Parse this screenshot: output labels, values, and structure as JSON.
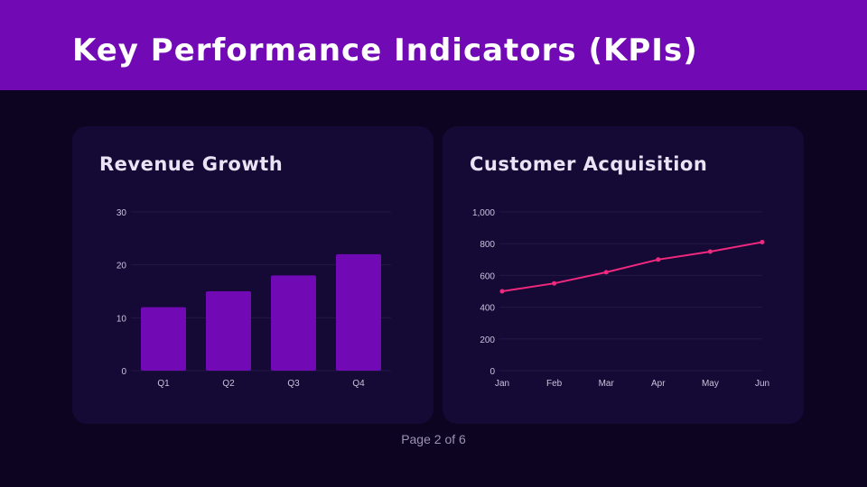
{
  "header": {
    "title": "Key Performance Indicators (KPIs)"
  },
  "colors": {
    "header": "#7109b5",
    "bar": "#7109b5",
    "line": "#f0287e",
    "card": "#150a35",
    "background": "#0c0420"
  },
  "chart_data": [
    {
      "type": "bar",
      "title": "Revenue Growth",
      "categories": [
        "Q1",
        "Q2",
        "Q3",
        "Q4"
      ],
      "values": [
        12,
        15,
        18,
        22
      ],
      "ylim": [
        0,
        30
      ],
      "yticks": [
        "0",
        "10",
        "20",
        "30"
      ],
      "grid": true
    },
    {
      "type": "line",
      "title": "Customer Acquisition",
      "categories": [
        "Jan",
        "Feb",
        "Mar",
        "Apr",
        "May",
        "Jun"
      ],
      "values": [
        500,
        550,
        620,
        700,
        750,
        810
      ],
      "ylim": [
        0,
        1000
      ],
      "yticks": [
        "0",
        "200",
        "400",
        "600",
        "800",
        "1,000"
      ],
      "grid": true
    }
  ],
  "footer": {
    "page": "Page 2 of 6"
  }
}
